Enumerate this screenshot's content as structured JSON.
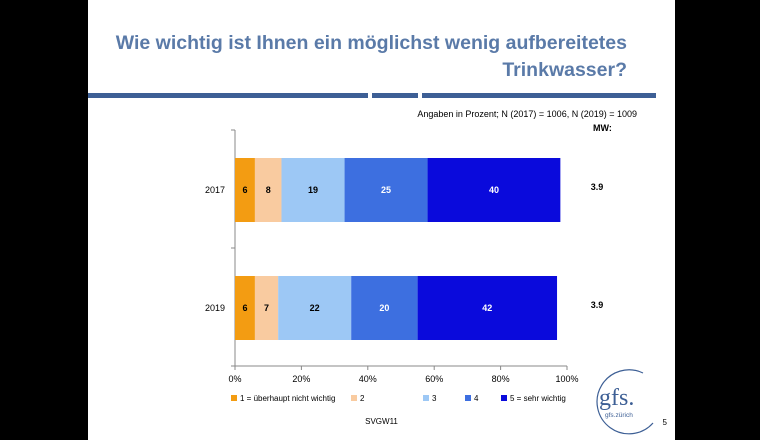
{
  "slide": {
    "title_line1": "Wie wichtig ist Ihnen ein möglichst wenig aufbereitetes",
    "title_line2": "Trinkwasser?",
    "subtitle": "Angaben in Prozent; N (2017) = 1006, N (2019) = 1009",
    "mw_label": "MW:",
    "mw_values": [
      "3.9",
      "3.9"
    ],
    "footer": "SVGW11",
    "page_number": "5",
    "logo": {
      "text": "gfs.",
      "subtext": "gfs.zürich",
      "color": "#3d5f95"
    }
  },
  "chart_data": {
    "type": "bar",
    "orientation": "horizontal",
    "stacked": true,
    "categories": [
      "2017",
      "2019"
    ],
    "series": [
      {
        "name": "1 = überhaupt nicht wichtig",
        "values": [
          6,
          6
        ],
        "color": "#f39c12"
      },
      {
        "name": "2",
        "values": [
          8,
          7
        ],
        "color": "#f9cba0"
      },
      {
        "name": "3",
        "values": [
          19,
          22
        ],
        "color": "#9dc8f5"
      },
      {
        "name": "4",
        "values": [
          25,
          20
        ],
        "color": "#3d6fe0"
      },
      {
        "name": "5 = sehr wichtig",
        "values": [
          40,
          42
        ],
        "color": "#0a0adc"
      }
    ],
    "xlim": [
      0,
      100
    ],
    "xticks": [
      "0%",
      "20%",
      "40%",
      "60%",
      "80%",
      "100%"
    ],
    "legend_position": "bottom",
    "grid": false
  }
}
